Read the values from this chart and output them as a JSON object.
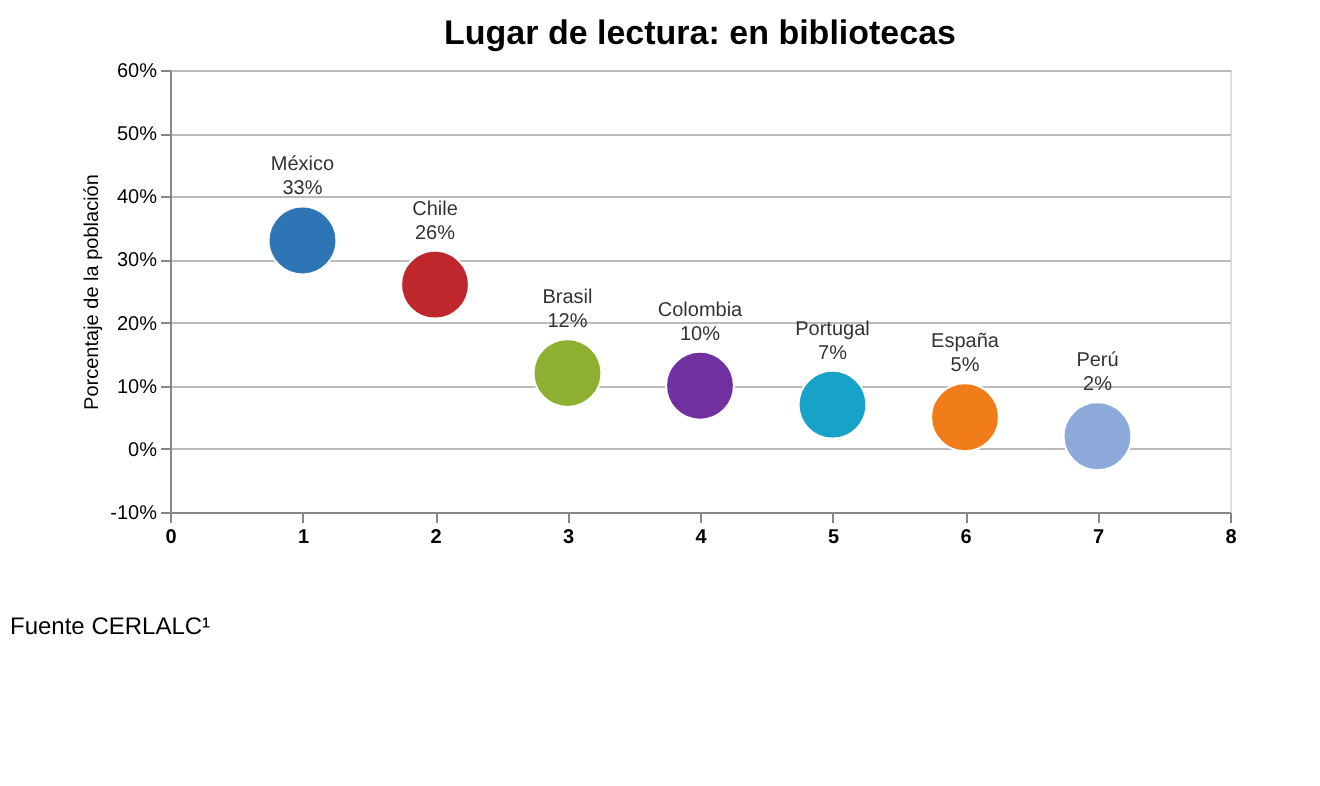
{
  "chart_data": {
    "type": "scatter",
    "title": "Lugar de lectura: en bibliotecas",
    "ylabel": "Porcentaje de la población",
    "x": [
      1,
      2,
      3,
      4,
      5,
      6,
      7
    ],
    "values": [
      33,
      26,
      12,
      10,
      7,
      5,
      2
    ],
    "colors": [
      "#2e75b6",
      "#c0272d",
      "#8db030",
      "#7030a0",
      "#17a2c7",
      "#f07d1a",
      "#8eaadb"
    ],
    "value_labels": [
      "33%",
      "26%",
      "12%",
      "10%",
      "7%",
      "5%",
      "2%"
    ],
    "annotations": [
      "México",
      "Chile",
      "Brasil",
      "Colombia",
      "Portugal",
      "España",
      "Perú",
      "Fuente CERLALC¹"
    ],
    "xlim": [
      0,
      8
    ],
    "xticks": [
      0,
      1,
      2,
      3,
      4,
      5,
      6,
      7,
      8
    ],
    "ylim": [
      -10,
      60
    ],
    "yticks": [
      {
        "value": -10,
        "label": "-10%"
      },
      {
        "value": 0,
        "label": "0%"
      },
      {
        "value": 10,
        "label": "10%"
      },
      {
        "value": 20,
        "label": "20%"
      },
      {
        "value": 30,
        "label": "30%"
      },
      {
        "value": 40,
        "label": "40%"
      },
      {
        "value": 50,
        "label": "50%"
      },
      {
        "value": 60,
        "label": "60%"
      }
    ],
    "grid": "y",
    "marker": "circle"
  }
}
